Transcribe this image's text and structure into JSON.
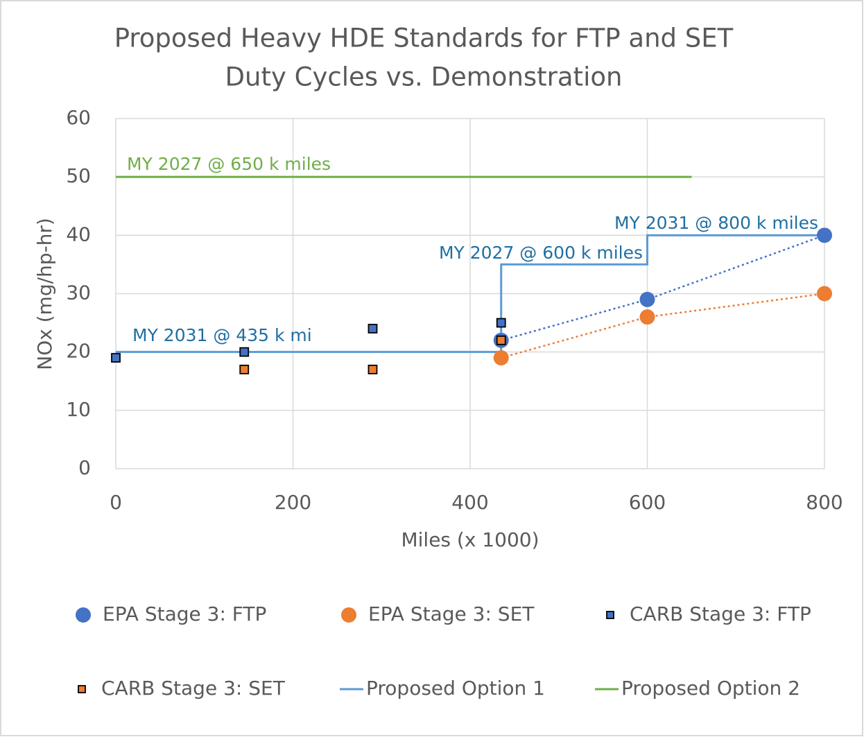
{
  "chart_data": {
    "type": "scatter",
    "title": [
      "Proposed Heavy HDE Standards for FTP and SET",
      "Duty Cycles vs. Demonstration"
    ],
    "x_label": "Miles (x 1000)",
    "y_label": "NOx (mg/hp-hr)",
    "xlim": [
      0,
      800
    ],
    "xticks": [
      0,
      200,
      400,
      600,
      800
    ],
    "ylim": [
      0,
      60
    ],
    "yticks": [
      0,
      10,
      20,
      30,
      40,
      50,
      60
    ],
    "grid": true,
    "legend": "bottom",
    "series": [
      {
        "name": "EPA Stage 3: FTP",
        "type": "scatter",
        "marker": "circle",
        "color": "#4472c4",
        "trendline": true,
        "x": [
          435,
          600,
          800
        ],
        "values": [
          22,
          29,
          40
        ]
      },
      {
        "name": "EPA Stage 3: SET",
        "type": "scatter",
        "marker": "circle",
        "color": "#ed7d31",
        "trendline": true,
        "x": [
          435,
          600,
          800
        ],
        "values": [
          19,
          26,
          30
        ]
      },
      {
        "name": "CARB Stage 3: FTP",
        "type": "scatter",
        "marker": "square",
        "color": "#4472c4",
        "x": [
          0,
          145,
          290,
          435
        ],
        "values": [
          19,
          20,
          24,
          25
        ]
      },
      {
        "name": "CARB Stage 3: SET",
        "type": "scatter",
        "marker": "square",
        "color": "#ed7d31",
        "x": [
          145,
          290,
          435
        ],
        "values": [
          17,
          17,
          22
        ]
      },
      {
        "name": "Proposed Option 1",
        "type": "line",
        "color": "#5b9bd5",
        "x": [
          0,
          435,
          435,
          600,
          600,
          800
        ],
        "values": [
          20,
          20,
          35,
          35,
          40,
          40
        ]
      },
      {
        "name": "Proposed Option 2",
        "type": "line",
        "color": "#70ad47",
        "x": [
          0,
          650
        ],
        "values": [
          50,
          50
        ]
      }
    ],
    "annotations": [
      {
        "text": "MY 2027 @ 650 k miles",
        "color": "#70ad47"
      },
      {
        "text": "MY 2031 @ 800 k miles",
        "color": "#1f6fa3"
      },
      {
        "text": "MY 2027 @ 600 k miles",
        "color": "#1f6fa3"
      },
      {
        "text": "MY 2031 @ 435 k mi",
        "color": "#1f6fa3"
      }
    ]
  }
}
